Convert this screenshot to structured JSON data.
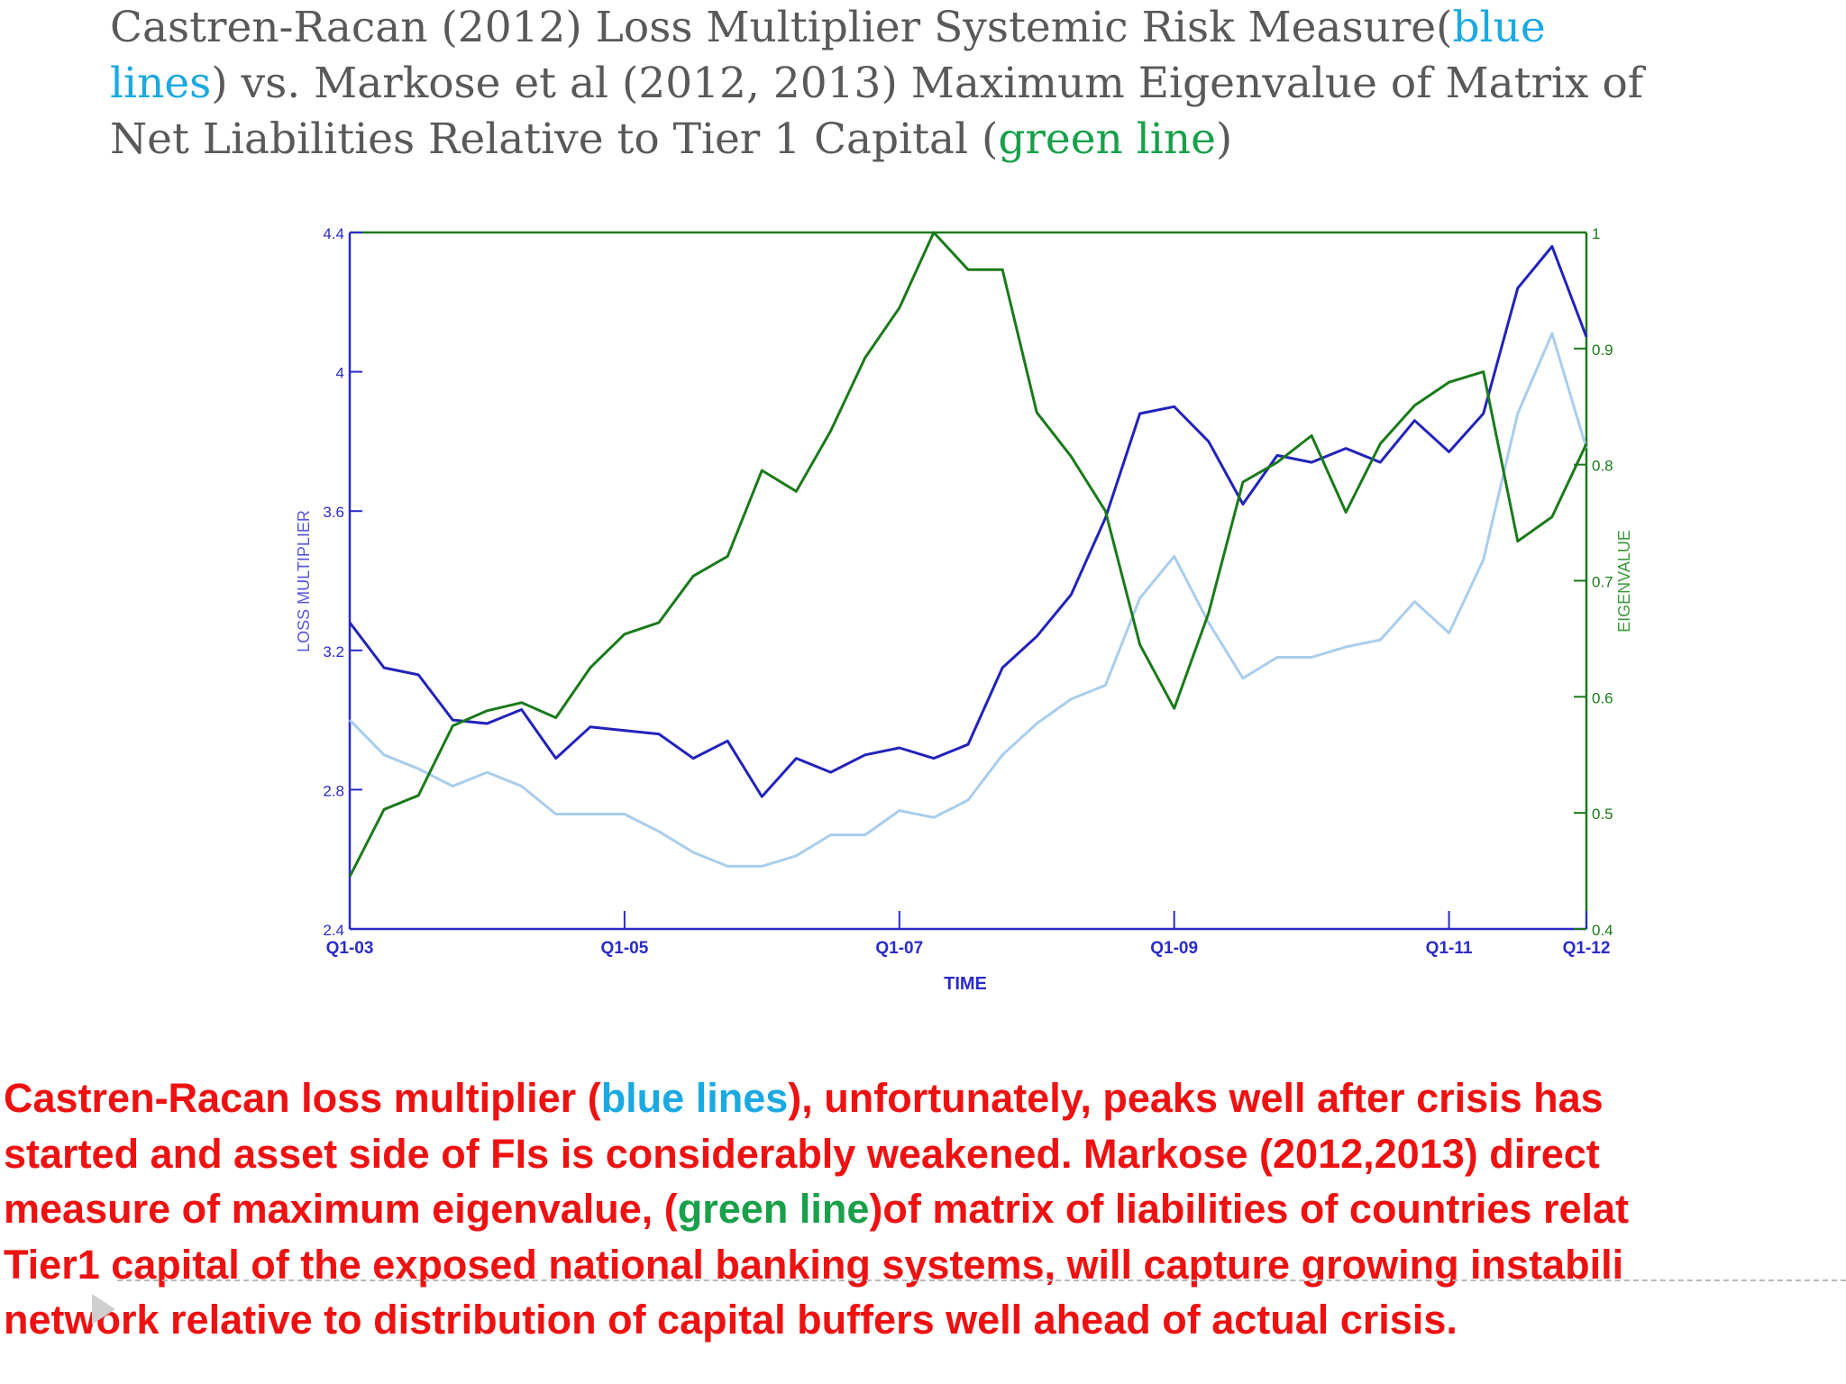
{
  "title": {
    "line1_a": "Castren-Racan (2012) Loss Multiplier Systemic Risk Measure(",
    "line1_b": "blue",
    "line2_a": "lines",
    "line2_b": ") vs. Markose et al (2012, 2013) Maximum Eigenvalue of Matrix of",
    "line3_a": "Net Liabilities Relative to Tier 1 Capital (",
    "line3_b": "green line",
    "line3_c": ")"
  },
  "body": {
    "line1_a": "Castren-Racan loss multiplier (",
    "line1_b": "blue lines",
    "line1_c": "), unfortunately, peaks well after crisis has",
    "line2": "started and asset side of FIs is considerably weakened. Markose (2012,2013) direct",
    "line3_a": "measure of maximum eigenvalue, (",
    "line3_b": "green line",
    "line3_c": ")of matrix of liabilities of countries relat",
    "line4": "Tier1 capital of the exposed national banking systems, will capture growing instabili",
    "line5": "network relative to distribution of capital buffers well ahead of actual crisis."
  },
  "colors": {
    "title_text": "#595959",
    "accent_blue": "#1ba9e1",
    "accent_green": "#18a04a",
    "body_red": "#ee1111",
    "left_axis": "#2a2acc",
    "right_axis": "#1a7a1a"
  },
  "chart_data": {
    "type": "line",
    "xlabel": "TIME",
    "ylabel_left": "LOSS MULTIPLIER",
    "ylabel_right": "EIGENVALUE",
    "x_ticks": [
      "Q1-03",
      "Q1-05",
      "Q1-07",
      "Q1-09",
      "Q1-11",
      "Q1-12"
    ],
    "x_tick_quarters": [
      0,
      8,
      16,
      24,
      32,
      36
    ],
    "ylim_left": [
      2.4,
      4.4
    ],
    "yticks_left": [
      "2.4",
      "2.8",
      "3.2",
      "3.6",
      "4",
      "4.4"
    ],
    "ylim_right": [
      0.4,
      1.0
    ],
    "yticks_right": [
      "0.4",
      "0.5",
      "0.6",
      "0.7",
      "0.8",
      "0.9",
      "1"
    ],
    "grid": false,
    "series": [
      {
        "axis": "left",
        "color": "#2222bb",
        "values": [
          3.28,
          3.15,
          3.13,
          3.0,
          2.99,
          3.03,
          2.89,
          2.98,
          2.97,
          2.96,
          2.89,
          2.94,
          2.78,
          2.89,
          2.85,
          2.9,
          2.92,
          2.89,
          2.93,
          3.15,
          3.24,
          3.36,
          3.58,
          3.88,
          3.9,
          3.8,
          3.62,
          3.76,
          3.74,
          3.78,
          3.74,
          3.86,
          3.77,
          3.88,
          4.24,
          4.36,
          4.1
        ]
      },
      {
        "axis": "left",
        "color": "#a9cdec",
        "values": [
          3.0,
          2.9,
          2.86,
          2.81,
          2.85,
          2.81,
          2.73,
          2.73,
          2.73,
          2.68,
          2.62,
          2.58,
          2.58,
          2.61,
          2.67,
          2.67,
          2.74,
          2.72,
          2.77,
          2.9,
          2.99,
          3.06,
          3.1,
          3.35,
          3.47,
          3.28,
          3.12,
          3.18,
          3.18,
          3.21,
          3.23,
          3.34,
          3.25,
          3.46,
          3.88,
          4.11,
          3.78
        ]
      },
      {
        "axis": "right",
        "color": "#1a7a1a",
        "values": [
          0.445,
          0.503,
          0.515,
          0.575,
          0.588,
          0.595,
          0.582,
          0.625,
          0.654,
          0.664,
          0.704,
          0.721,
          0.795,
          0.777,
          0.829,
          0.892,
          0.935,
          1.0,
          0.968,
          0.968,
          0.845,
          0.807,
          0.76,
          0.645,
          0.59,
          0.672,
          0.785,
          0.802,
          0.825,
          0.759,
          0.818,
          0.851,
          0.871,
          0.88,
          0.734,
          0.755,
          0.818
        ]
      }
    ]
  }
}
